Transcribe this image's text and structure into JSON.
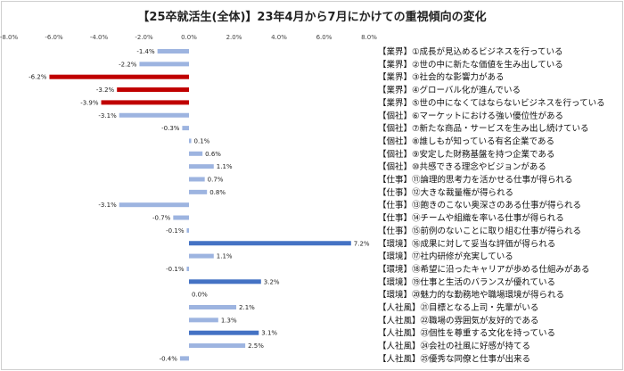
{
  "chart_data": {
    "type": "bar",
    "orientation": "horizontal",
    "title": "【25卒就活生(全体)】23年4月から7月にかけての重視傾向の変化",
    "xlim": [
      -8.0,
      8.0
    ],
    "x_ticks": [
      "-8.0%",
      "-6.0%",
      "-4.0%",
      "-2.0%",
      "0.0%",
      "2.0%",
      "4.0%",
      "6.0%",
      "8.0%"
    ],
    "x_tick_values": [
      -8,
      -6,
      -4,
      -2,
      0,
      2,
      4,
      6,
      8
    ],
    "grid": false,
    "categories": [
      "【業界】①成長が見込めるビジネスを行っている",
      "【業界】②世の中に新たな価値を生み出している",
      "【業界】③社会的な影響力がある",
      "【業界】④グローバル化が進んでいる",
      "【業界】⑤世の中になくてはならないビジネスを行っている",
      "【個社】⑥マーケットにおける強い優位性がある",
      "【個社】⑦新たな商品・サービスを生み出し続けている",
      "【個社】⑧誰しもが知っている有名企業である",
      "【個社】⑨安定した財務基盤を持つ企業である",
      "【個社】⑩共感できる理念やビジョンがある",
      "【仕事】⑪論理的思考力を活かせる仕事が得られる",
      "【仕事】⑫大きな裁量権が得られる",
      "【仕事】⑬飽きのこない奥深さのある仕事が得られる",
      "【仕事】⑭チームや組織を率いる仕事が得られる",
      "【仕事】⑮前例のないことに取り組む仕事が得られる",
      "【環境】⑯成果に対して妥当な評価が得られる",
      "【環境】⑰社内研修が充実している",
      "【環境】⑱希望に沿ったキャリアが歩める仕組みがある",
      "【環境】⑲仕事と生活のバランスが優れている",
      "【環境】⑳魅力的な勤務地や職場環境が得られる",
      "【人社風】㉑目標となる上司・先輩がいる",
      "【人社風】㉒職場の雰囲気が友好的である",
      "【人社風】㉓個性を尊重する文化を持っている",
      "【人社風】㉔会社の社風に好感が持てる",
      "【人社風】㉕優秀な同僚と仕事が出来る"
    ],
    "values": [
      -1.4,
      -2.2,
      -6.2,
      -3.2,
      -3.9,
      -3.1,
      -0.3,
      0.1,
      0.6,
      1.1,
      0.7,
      0.8,
      -3.1,
      -0.7,
      -0.1,
      7.2,
      1.1,
      -0.1,
      3.2,
      0.0,
      2.1,
      1.3,
      3.1,
      2.5,
      -0.4
    ],
    "value_labels": [
      "-1.4%",
      "-2.2%",
      "-6.2%",
      "-3.2%",
      "-3.9%",
      "-3.1%",
      "-0.3%",
      "0.1%",
      "0.6%",
      "1.1%",
      "0.7%",
      "0.8%",
      "-3.1%",
      "-0.7%",
      "-0.1%",
      "7.2%",
      "1.1%",
      "-0.1%",
      "3.2%",
      "0.0%",
      "2.1%",
      "1.3%",
      "3.1%",
      "2.5%",
      "-0.4%"
    ],
    "colors": {
      "default": "#9db4e0",
      "highlight_negative": "#c00000",
      "highlight_positive": "#4472c4"
    },
    "bar_color_keys": [
      "default",
      "default",
      "highlight_negative",
      "highlight_negative",
      "highlight_negative",
      "default",
      "default",
      "default",
      "default",
      "default",
      "default",
      "default",
      "default",
      "default",
      "default",
      "highlight_positive",
      "default",
      "default",
      "highlight_positive",
      "default",
      "default",
      "default",
      "highlight_positive",
      "default",
      "default"
    ]
  }
}
